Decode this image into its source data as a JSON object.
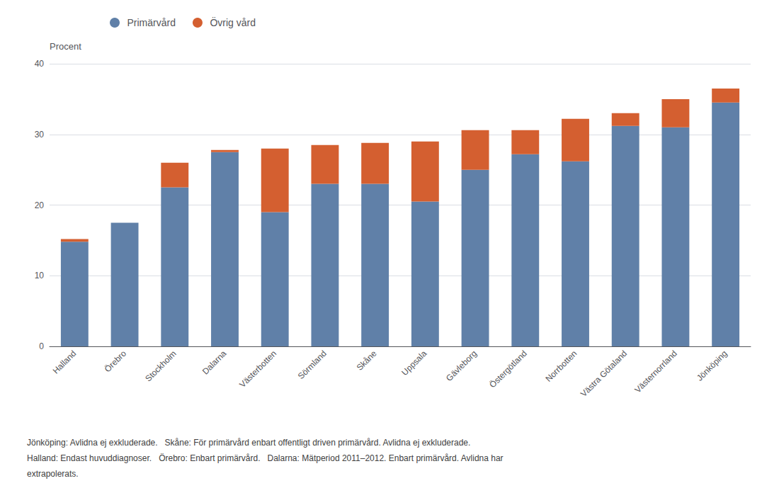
{
  "chart_data": {
    "type": "bar",
    "stacked": true,
    "ylabel": "Procent",
    "categories": [
      "Halland",
      "Örebro",
      "Stockholm",
      "Dalarna",
      "Västerbotten",
      "Sörmland",
      "Skåne",
      "Uppsala",
      "Gävleborg",
      "Östergötland",
      "Norrbotten",
      "Västra Götaland",
      "Västernorrland",
      "Jönköping"
    ],
    "series": [
      {
        "name": "Primärvård",
        "color": "#6080a8",
        "values": [
          14.8,
          17.5,
          22.5,
          27.5,
          19.0,
          23.0,
          23.0,
          20.5,
          25.0,
          27.2,
          26.2,
          31.2,
          31.0,
          34.5
        ]
      },
      {
        "name": "Övrig vård",
        "color": "#d45f30",
        "values": [
          0.4,
          0.0,
          3.5,
          0.3,
          9.0,
          5.5,
          5.8,
          8.5,
          5.6,
          3.4,
          6.0,
          1.8,
          4.0,
          2.0
        ]
      }
    ],
    "ylim": [
      0,
      40
    ],
    "yticks": [
      0,
      10,
      20,
      30,
      40
    ],
    "grid": true,
    "legend": "upper left",
    "annotations": [
      "Jönköping: Avlidna ej exkluderade.   Skåne: För primärvård enbart offentligt driven primärvård. Avlidna ej exkluderade.",
      "Halland: Endast huvuddiagnoser.   Örebro: Enbart primärvård.   Dalarna: Mätperiod 2011–2012. Enbart primärvård. Avlidna har",
      "extrapolerats."
    ]
  }
}
